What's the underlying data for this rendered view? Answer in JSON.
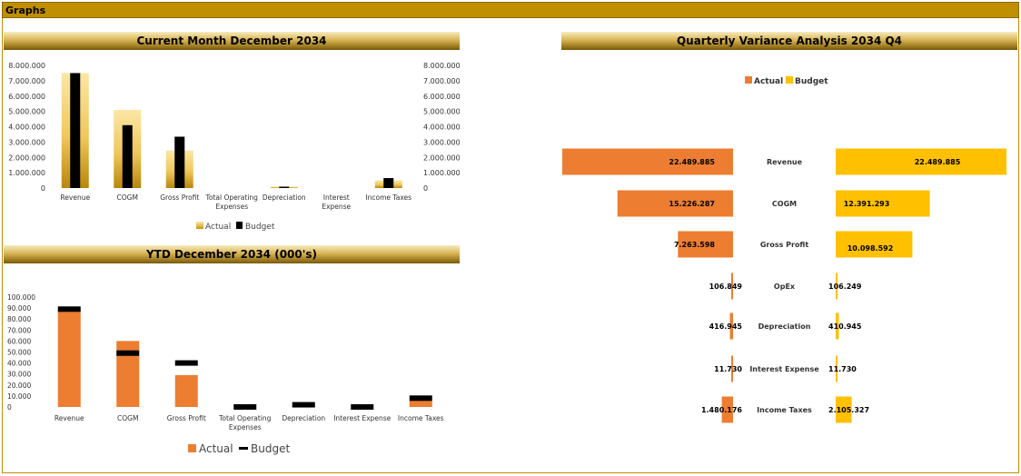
{
  "page": {
    "title": "Graphs"
  },
  "colors": {
    "accent": "#bf8f00",
    "actual_orange": "#ed7d31",
    "budget_yellow": "#ffc000",
    "budget_black": "#000000",
    "actual_gold": "#f3d27a"
  },
  "chart_data": [
    {
      "id": "current-month",
      "type": "bar",
      "title": "Current Month  December 2034",
      "categories": [
        "Revenue",
        "COGM",
        "Gross Profit",
        "Total Operating Expenses",
        "Depreciation",
        "Interest Expense",
        "Income Taxes"
      ],
      "category_lines": [
        [
          "Revenue"
        ],
        [
          "COGM"
        ],
        [
          "Gross Profit"
        ],
        [
          "Total Operating",
          "Expenses"
        ],
        [
          "Depreciation"
        ],
        [
          "Interest",
          "Expense"
        ],
        [
          "Income Taxes"
        ]
      ],
      "series": [
        {
          "name": "Actual",
          "values": [
            7500000,
            5100000,
            2450000,
            0,
            90000,
            0,
            500000
          ]
        },
        {
          "name": "Budget",
          "values": [
            7500000,
            4100000,
            3350000,
            0,
            90000,
            0,
            650000
          ]
        }
      ],
      "y_ticks": [
        "0",
        "1.000.000",
        "2.000.000",
        "3.000.000",
        "4.000.000",
        "5.000.000",
        "6.000.000",
        "7.000.000",
        "8.000.000"
      ],
      "ylim": [
        0,
        8000000
      ],
      "legend": [
        "Actual",
        "Budget"
      ],
      "legend_position": "bottom"
    },
    {
      "id": "ytd",
      "type": "bar",
      "title": "YTD  December 2034   (000's)",
      "categories": [
        "Revenue",
        "COGM",
        "Gross Profit",
        "Total Operating Expenses",
        "Depreciation",
        "Interest Expense",
        "Income Taxes"
      ],
      "category_lines": [
        [
          "Revenue"
        ],
        [
          "COGM"
        ],
        [
          "Gross Profit"
        ],
        [
          "Total Operating",
          "Expenses"
        ],
        [
          "Depreciation"
        ],
        [
          "Interest Expense"
        ],
        [
          "Income Taxes"
        ]
      ],
      "series": [
        {
          "name": "Actual",
          "values": [
            88000,
            60000,
            29000,
            0,
            1500,
            0,
            6000
          ]
        },
        {
          "name": "Budget",
          "values": [
            89000,
            49000,
            40000,
            0,
            2000,
            0,
            8000
          ]
        }
      ],
      "y_ticks": [
        "0",
        "10.000",
        "20.000",
        "30.000",
        "40.000",
        "50.000",
        "60.000",
        "70.000",
        "80.000",
        "90.000",
        "100.000"
      ],
      "ylim": [
        0,
        100000
      ],
      "legend": [
        "Actual",
        "Budget"
      ],
      "legend_position": "bottom"
    },
    {
      "id": "quarterly-variance",
      "type": "bar",
      "orientation": "horizontal-butterfly",
      "title": "Quarterly Variance Analysis  2034 Q4",
      "categories": [
        "Revenue",
        "COGM",
        "Gross Profit",
        "OpEx",
        "Depreciation",
        "Interest Expense",
        "Income Taxes"
      ],
      "series": [
        {
          "name": "Actual",
          "values": [
            22489885,
            15226287,
            7263598,
            106849,
            416945,
            11730,
            1480176
          ],
          "labels": [
            "22.489.885",
            "15.226.287",
            "7.263.598",
            "106.849",
            "416.945",
            "11.730",
            "1.480.176"
          ]
        },
        {
          "name": "Budget",
          "values": [
            22489885,
            12391293,
            10098592,
            106249,
            410945,
            11730,
            2105327
          ],
          "labels": [
            "22.489.885",
            "12.391.293",
            "10.098.592",
            "106.249",
            "410.945",
            "11.730",
            "2.105.327"
          ]
        }
      ],
      "legend": [
        "Actual",
        "Budget"
      ],
      "legend_position": "top"
    }
  ]
}
